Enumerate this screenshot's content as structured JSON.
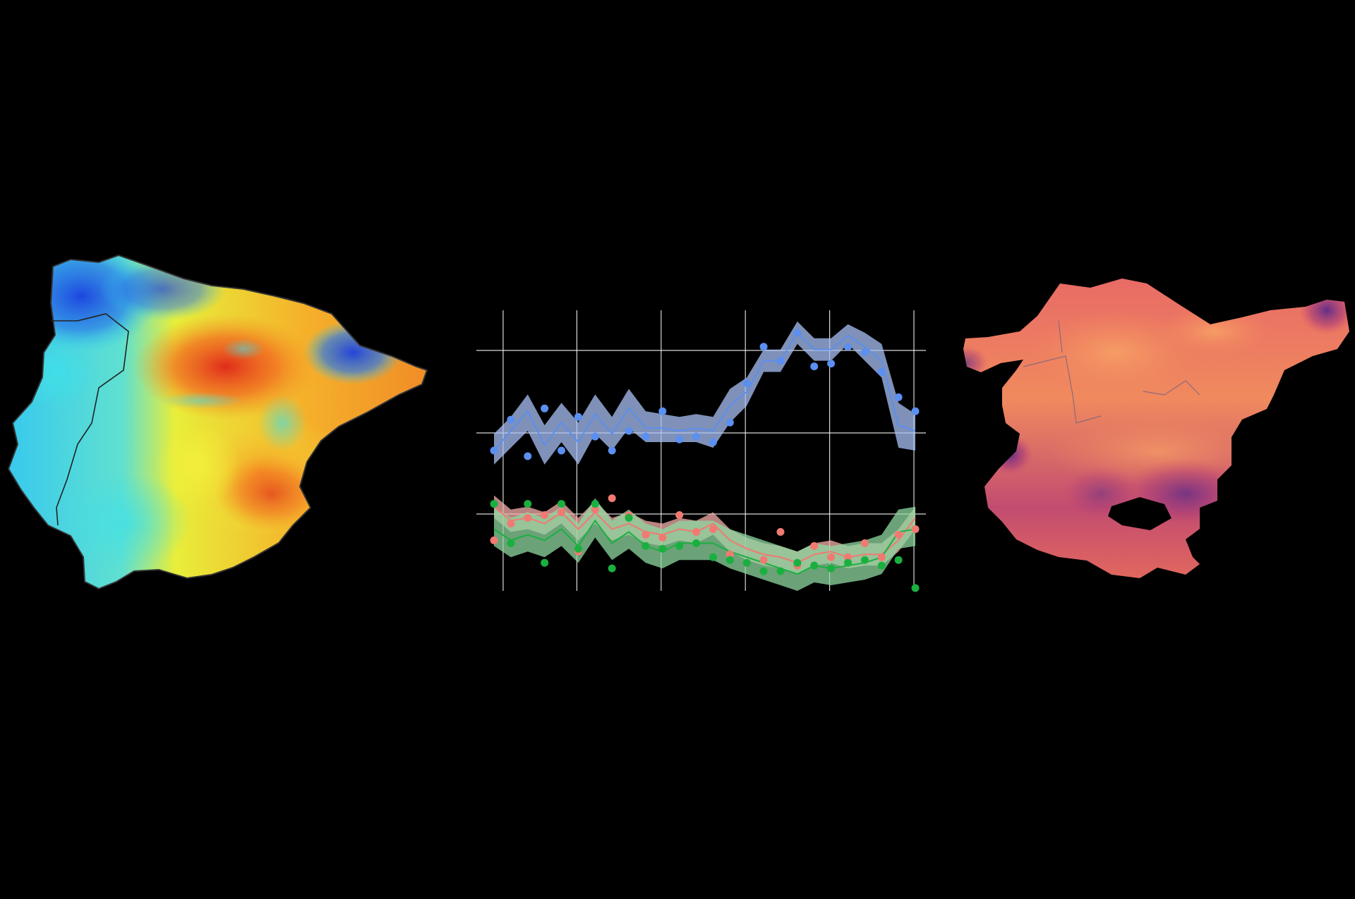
{
  "panels": {
    "iberia_map": {
      "description_colors": {
        "cold": "#1a3fe0",
        "cool": "#2fd0f0",
        "mid": "#f2f03a",
        "warm": "#f59a25",
        "hot": "#e0241a"
      }
    },
    "basque_map": {
      "description_colors": {
        "light": "#f28a5c",
        "mid": "#d2556c",
        "dark": "#5a2a8a"
      }
    }
  },
  "chart_data": {
    "type": "line",
    "title": "",
    "xlabel": "",
    "ylabel": "",
    "grid": true,
    "legend": "none",
    "xlim": [
      0,
      26
    ],
    "ylim": [
      0,
      100
    ],
    "x": [
      0,
      1,
      2,
      3,
      4,
      5,
      6,
      7,
      8,
      9,
      10,
      11,
      12,
      13,
      14,
      15,
      16,
      17,
      18,
      19,
      20,
      21,
      22,
      23,
      24,
      25
    ],
    "series": [
      {
        "color": "#5b8ff0",
        "fill": "#a9c2f5",
        "line": [
          50,
          57,
          64,
          52,
          60,
          53,
          63,
          56,
          65,
          58,
          58,
          57,
          58,
          57,
          66,
          71,
          82,
          82,
          92,
          86,
          86,
          91,
          87,
          82,
          59,
          57
        ],
        "lower": [
          45,
          51,
          57,
          45,
          53,
          45,
          56,
          50,
          58,
          53,
          53,
          53,
          53,
          51,
          60,
          66,
          78,
          78,
          88,
          82,
          82,
          88,
          82,
          76,
          51,
          50
        ],
        "upper": [
          56,
          62,
          70,
          59,
          67,
          60,
          70,
          62,
          72,
          64,
          63,
          62,
          63,
          62,
          72,
          76,
          86,
          86,
          96,
          90,
          90,
          95,
          92,
          88,
          67,
          63
        ],
        "points": [
          50,
          61,
          48,
          65,
          50,
          62,
          55,
          50,
          57,
          55,
          64,
          54,
          55,
          53,
          60,
          74,
          87,
          82,
          92,
          80,
          81,
          87,
          85,
          78,
          69,
          64
        ]
      },
      {
        "color": "#f07a72",
        "fill": "#f5b0aa",
        "line": [
          30,
          25,
          26,
          24,
          28,
          22,
          28,
          22,
          24,
          21,
          20,
          22,
          21,
          24,
          18,
          15,
          13,
          12,
          10,
          13,
          14,
          12,
          13,
          13,
          18,
          26
        ],
        "lower": [
          26,
          21,
          22,
          20,
          24,
          18,
          24,
          18,
          20,
          17,
          16,
          18,
          17,
          20,
          14,
          11,
          9,
          8,
          6,
          9,
          10,
          8,
          9,
          9,
          14,
          22
        ],
        "upper": [
          34,
          29,
          30,
          28,
          32,
          26,
          32,
          26,
          28,
          25,
          24,
          26,
          25,
          28,
          22,
          19,
          17,
          16,
          14,
          17,
          18,
          16,
          17,
          17,
          22,
          30
        ],
        "points": [
          18,
          24,
          26,
          27,
          28,
          14,
          29,
          33,
          27,
          20,
          19,
          27,
          21,
          22,
          13,
          10,
          11,
          21,
          9,
          16,
          12,
          12,
          17,
          12,
          20,
          22
        ]
      },
      {
        "color": "#1ab040",
        "fill": "#8fd8a0",
        "line": [
          22,
          18,
          20,
          18,
          22,
          16,
          25,
          17,
          21,
          16,
          14,
          17,
          17,
          17,
          14,
          12,
          10,
          8,
          6,
          9,
          8,
          9,
          10,
          12,
          21,
          22
        ],
        "lower": [
          16,
          12,
          14,
          12,
          16,
          10,
          19,
          11,
          15,
          10,
          8,
          11,
          11,
          11,
          8,
          6,
          4,
          2,
          0,
          3,
          2,
          3,
          4,
          6,
          15,
          16
        ],
        "upper": [
          30,
          26,
          28,
          26,
          30,
          24,
          33,
          25,
          29,
          24,
          22,
          25,
          25,
          25,
          22,
          20,
          18,
          16,
          14,
          17,
          16,
          17,
          18,
          20,
          29,
          30
        ],
        "points": [
          31,
          17,
          31,
          10,
          31,
          15,
          31,
          8,
          26,
          16,
          15,
          16,
          17,
          12,
          11,
          10,
          7,
          7,
          10,
          9,
          8,
          10,
          11,
          9,
          11,
          1
        ]
      }
    ]
  }
}
